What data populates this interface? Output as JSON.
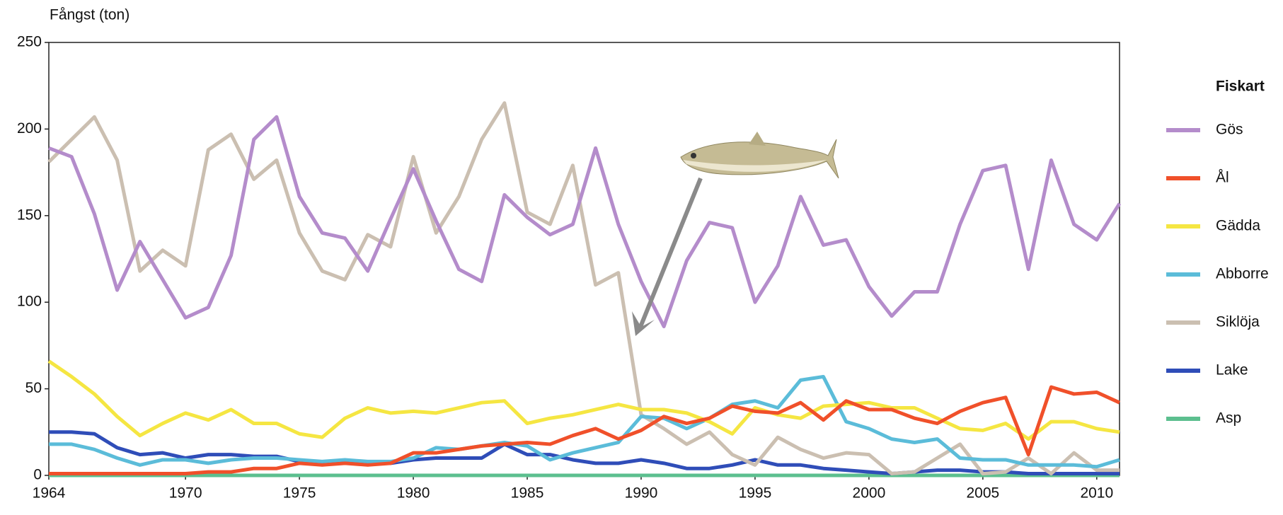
{
  "chart_data": {
    "type": "line",
    "y_label": "Fångst (ton)",
    "legend_title": "Fiskart",
    "legend": "right",
    "grid": false,
    "xlim": [
      1964,
      2011
    ],
    "xticks": [
      1964,
      1970,
      1975,
      1980,
      1985,
      1990,
      1995,
      2000,
      2005,
      2010
    ],
    "ylim": [
      0,
      250
    ],
    "yticks": [
      0,
      50,
      100,
      150,
      200,
      250
    ],
    "x": [
      1964,
      1965,
      1966,
      1967,
      1968,
      1969,
      1970,
      1971,
      1972,
      1973,
      1974,
      1975,
      1976,
      1977,
      1978,
      1979,
      1980,
      1981,
      1982,
      1983,
      1984,
      1985,
      1986,
      1987,
      1988,
      1989,
      1990,
      1991,
      1992,
      1993,
      1994,
      1995,
      1996,
      1997,
      1998,
      1999,
      2000,
      2001,
      2002,
      2003,
      2004,
      2005,
      2006,
      2007,
      2008,
      2009,
      2010,
      2011
    ],
    "series": [
      {
        "name": "Gös",
        "color": "#b48ccb",
        "values": [
          189,
          184,
          151,
          107,
          135,
          113,
          91,
          97,
          127,
          194,
          207,
          161,
          140,
          137,
          118,
          148,
          177,
          147,
          119,
          112,
          162,
          149,
          139,
          145,
          189,
          145,
          112,
          86,
          124,
          146,
          143,
          100,
          121,
          161,
          133,
          136,
          109,
          92,
          106,
          106,
          145,
          176,
          179,
          119,
          182,
          145,
          136,
          157
        ]
      },
      {
        "name": "Ål",
        "color": "#f0502a",
        "values": [
          1,
          1,
          1,
          1,
          1,
          1,
          1,
          2,
          2,
          4,
          4,
          7,
          6,
          7,
          6,
          7,
          13,
          13,
          15,
          17,
          18,
          19,
          18,
          23,
          27,
          21,
          26,
          34,
          30,
          33,
          40,
          37,
          36,
          42,
          32,
          43,
          38,
          38,
          33,
          30,
          37,
          42,
          45,
          12,
          51,
          47,
          48,
          42
        ]
      },
      {
        "name": "Gädda",
        "color": "#f5e642",
        "values": [
          66,
          57,
          47,
          34,
          23,
          30,
          36,
          32,
          38,
          30,
          30,
          24,
          22,
          33,
          39,
          36,
          37,
          36,
          39,
          42,
          43,
          30,
          33,
          35,
          38,
          41,
          38,
          38,
          36,
          31,
          24,
          39,
          35,
          33,
          40,
          41,
          42,
          39,
          39,
          33,
          27,
          26,
          30,
          21,
          31,
          31,
          27,
          25
        ]
      },
      {
        "name": "Abborre",
        "color": "#5bbcd9",
        "values": [
          18,
          18,
          15,
          10,
          6,
          9,
          9,
          7,
          9,
          10,
          10,
          9,
          8,
          9,
          8,
          8,
          10,
          16,
          15,
          17,
          19,
          17,
          9,
          13,
          16,
          19,
          34,
          33,
          27,
          33,
          41,
          43,
          39,
          55,
          57,
          31,
          27,
          21,
          19,
          21,
          10,
          9,
          9,
          6,
          6,
          6,
          5,
          9
        ]
      },
      {
        "name": "Siklöja",
        "color": "#cbbfb1",
        "values": [
          181,
          194,
          207,
          182,
          118,
          130,
          121,
          188,
          197,
          171,
          182,
          140,
          118,
          113,
          139,
          132,
          184,
          140,
          161,
          194,
          215,
          152,
          145,
          179,
          110,
          117,
          35,
          27,
          18,
          25,
          12,
          6,
          22,
          15,
          10,
          13,
          12,
          1,
          2,
          10,
          18,
          1,
          2,
          10,
          1,
          13,
          3,
          3
        ]
      },
      {
        "name": "Lake",
        "color": "#2f4db8",
        "values": [
          25,
          25,
          24,
          16,
          12,
          13,
          10,
          12,
          12,
          11,
          11,
          8,
          7,
          7,
          7,
          7,
          9,
          10,
          10,
          10,
          18,
          12,
          12,
          9,
          7,
          7,
          9,
          7,
          4,
          4,
          6,
          9,
          6,
          6,
          4,
          3,
          2,
          1,
          2,
          3,
          3,
          2,
          2,
          1,
          1,
          1,
          1,
          1
        ]
      },
      {
        "name": "Asp",
        "color": "#5cbf8f",
        "values": [
          0,
          0,
          0,
          0,
          0,
          0,
          0,
          0,
          0,
          0,
          0,
          0,
          0,
          0,
          0,
          0,
          0,
          0,
          0,
          0,
          0,
          0,
          0,
          0,
          0,
          0,
          0,
          0,
          0,
          0,
          0,
          0,
          0,
          0,
          0,
          0,
          0,
          0,
          0,
          0,
          0,
          0,
          0,
          0,
          0,
          0,
          0,
          0
        ]
      }
    ]
  }
}
